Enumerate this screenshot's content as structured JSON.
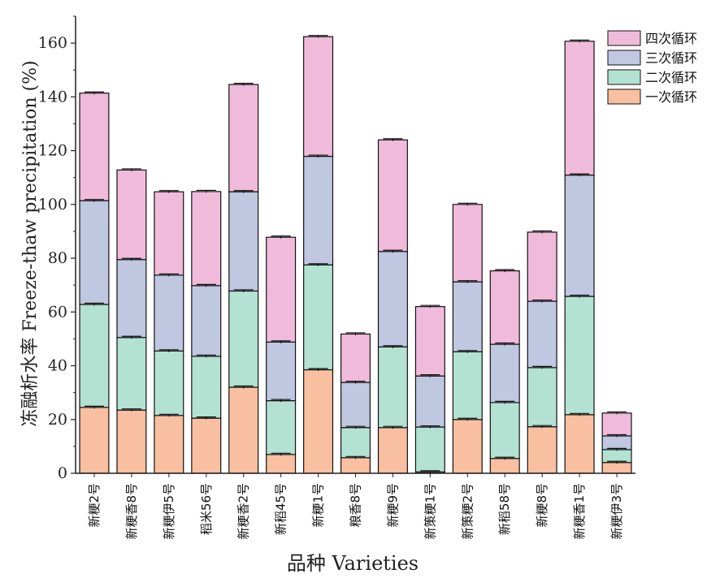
{
  "chart_data": {
    "type": "bar",
    "stacked": true,
    "title": "",
    "ylabel": "冻融析水率 Freeze-thaw precipitation (%)",
    "xlabel": "品种 Varieties",
    "ylim": [
      0,
      170
    ],
    "yticks": [
      0,
      20,
      40,
      60,
      80,
      100,
      120,
      140,
      160
    ],
    "legend_position": "top-right",
    "categories": [
      "新粳2号",
      "新粳香8号",
      "新粳伊5号",
      "稻米56号",
      "新粳香2号",
      "新稻45号",
      "新粳1号",
      "粮香8号",
      "新粳9号",
      "新策粳1号",
      "新策粳2号",
      "新稻58号",
      "新粳8号",
      "新粳香1号",
      "新粳伊3号"
    ],
    "series": [
      {
        "name": "一次循环",
        "color": "#f9bfa1",
        "values": [
          24.5,
          23.5,
          21.5,
          20.5,
          32,
          7,
          38.5,
          5.8,
          17,
          0.5,
          20,
          5.5,
          17.3,
          21.8,
          4
        ]
      },
      {
        "name": "二次循环",
        "color": "#b3e2d2",
        "values": [
          38.3,
          27,
          24,
          23,
          35.8,
          20,
          39,
          11.2,
          30,
          16.7,
          25.2,
          20.8,
          22,
          44,
          4.8
        ]
      },
      {
        "name": "三次循环",
        "color": "#bfc7e1",
        "values": [
          38.6,
          29,
          28.2,
          26.3,
          36.9,
          21.8,
          40.4,
          16.8,
          35.5,
          19,
          26,
          21.7,
          24.7,
          45.1,
          5.1
        ]
      },
      {
        "name": "四次循环",
        "color": "#f0bbda",
        "values": [
          40,
          33.3,
          31,
          35,
          39.9,
          39,
          44.5,
          18,
          41.5,
          25.8,
          28.8,
          27.3,
          25.7,
          49.8,
          8.5
        ]
      }
    ],
    "error_bars": true
  }
}
